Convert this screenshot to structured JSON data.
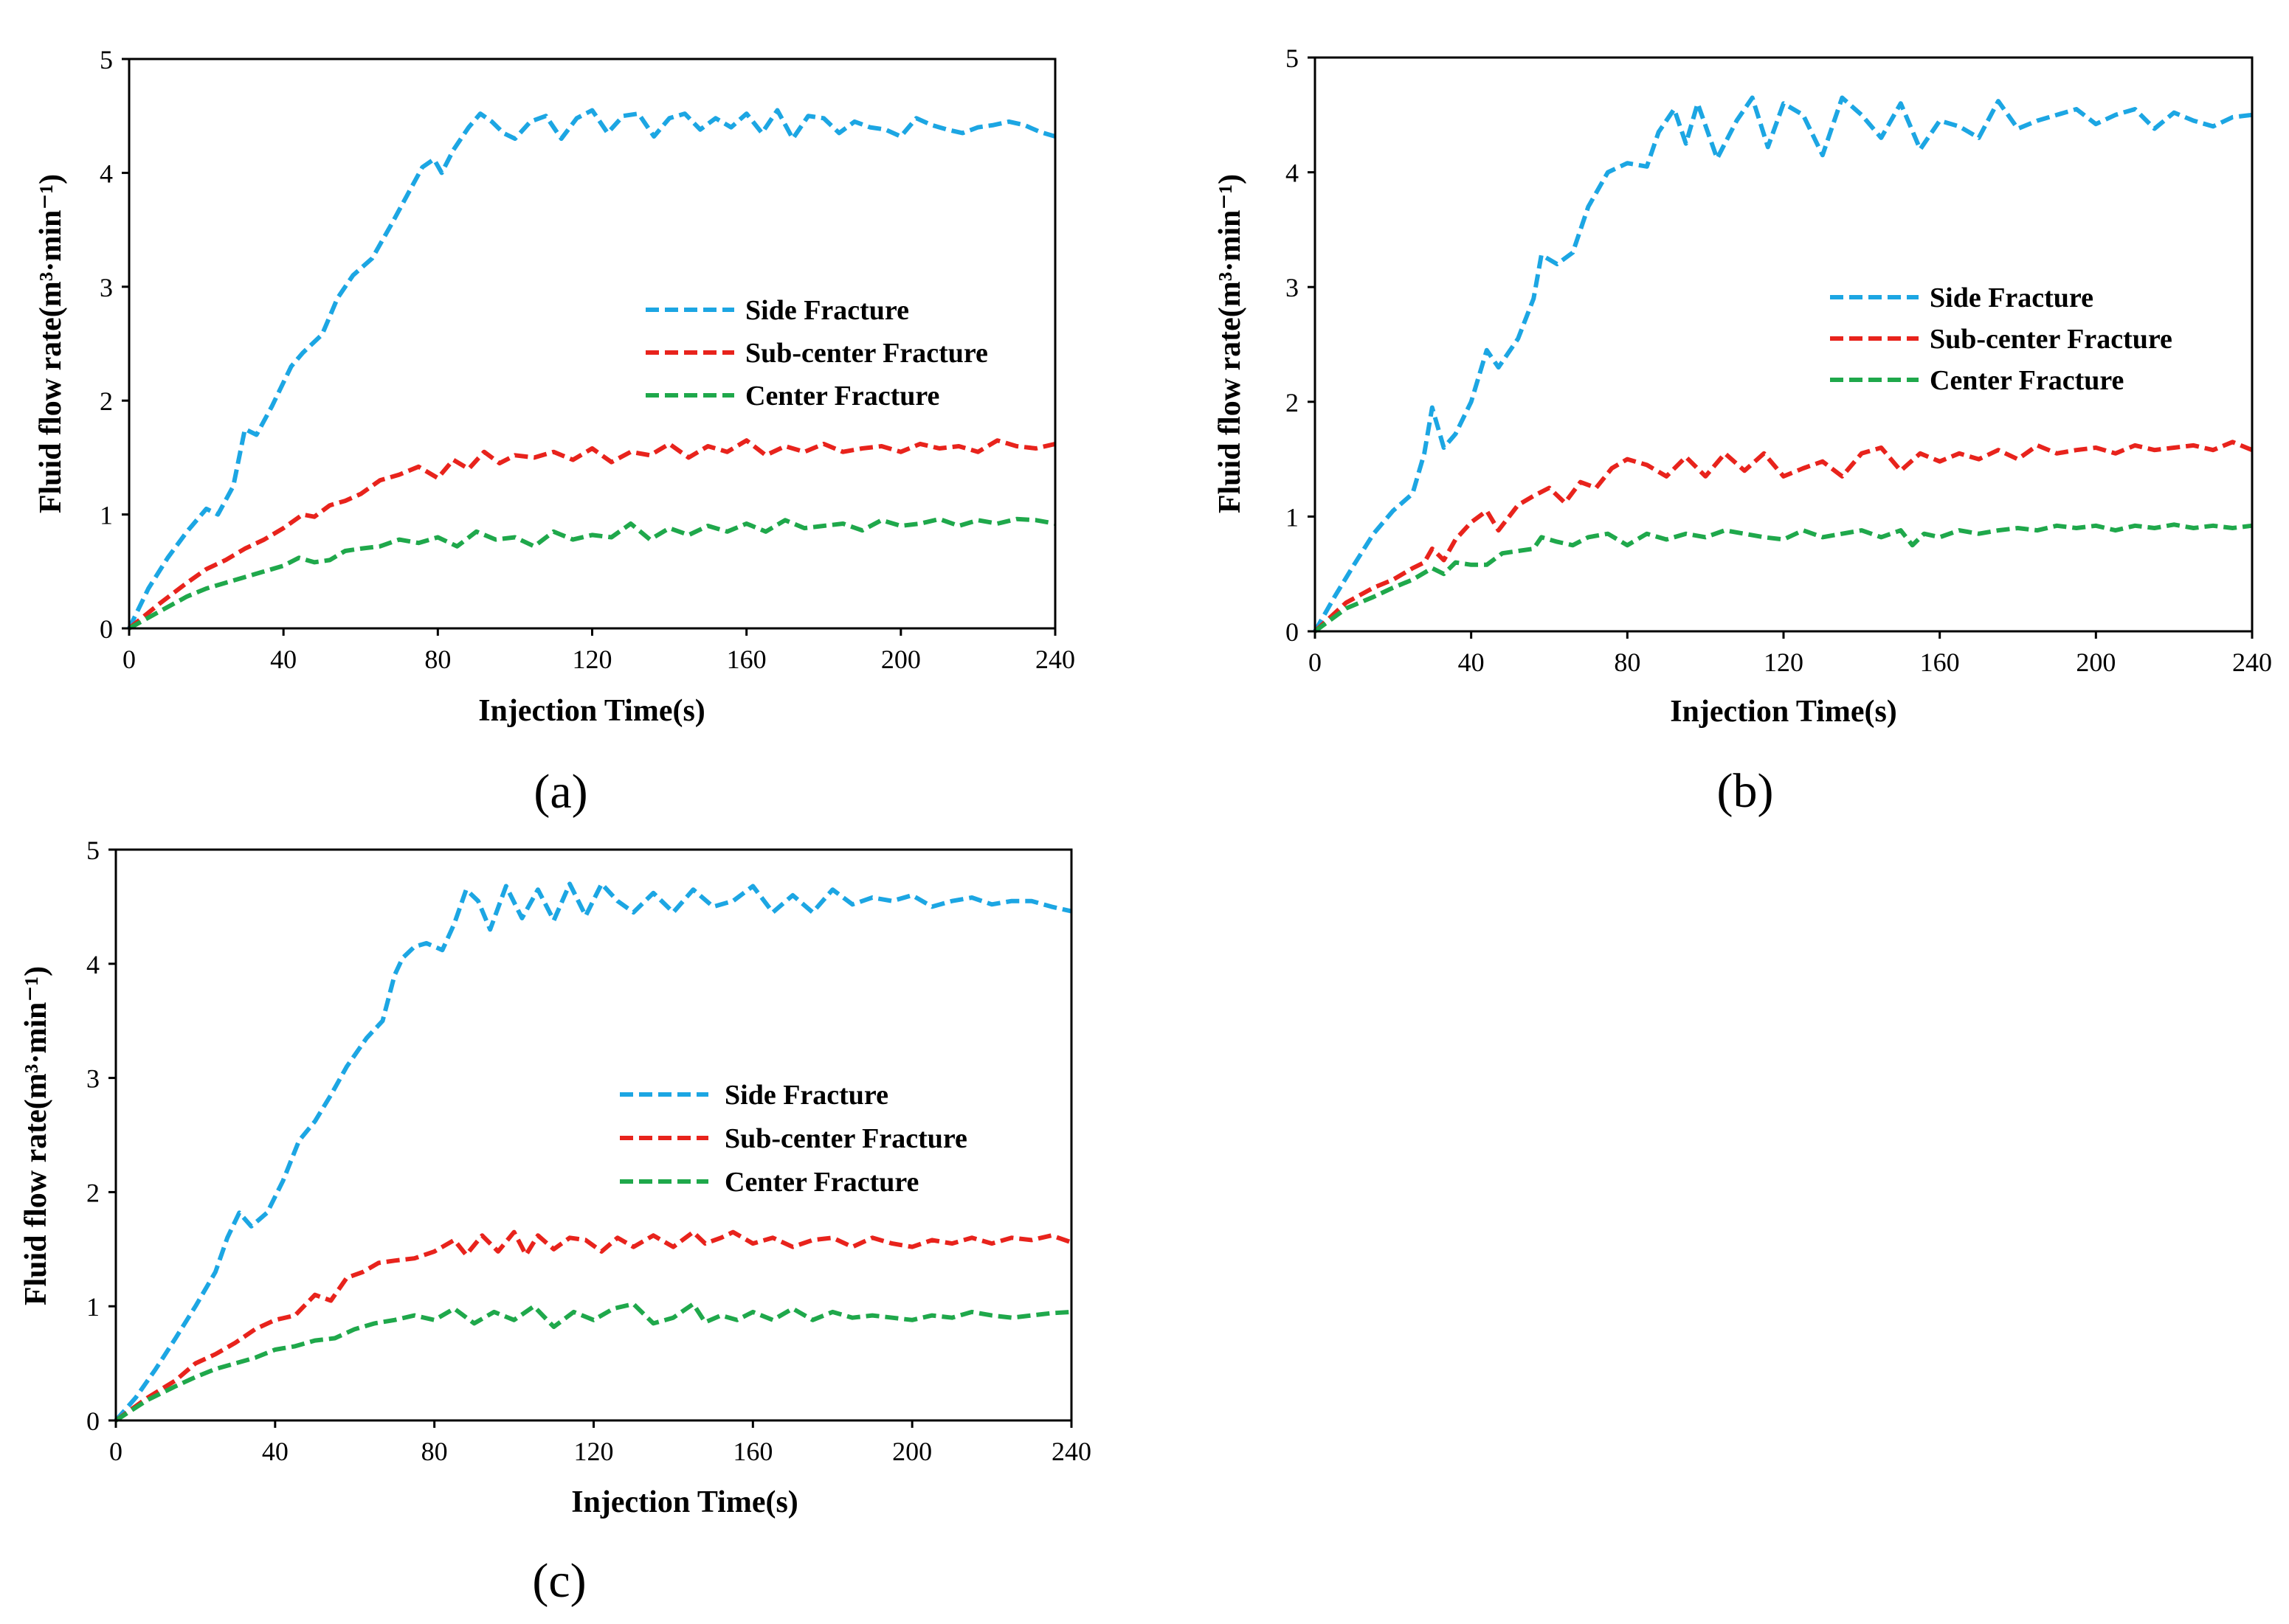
{
  "figure": {
    "y_tick_values": [
      0,
      1,
      2,
      3,
      4,
      5
    ],
    "x_tick_values": [
      0,
      40,
      80,
      120,
      160,
      200,
      240
    ]
  },
  "chart_data": [
    {
      "type": "line",
      "panel_label": "(a)",
      "xlabel": "Injection Time(s)",
      "ylabel": "Fluid flow rate(m³·min⁻¹)",
      "xlim": [
        0,
        240
      ],
      "ylim": [
        0,
        5
      ],
      "x_ticks": [
        "0",
        "40",
        "80",
        "120",
        "160",
        "200",
        "240"
      ],
      "y_ticks": [
        "0",
        "1",
        "2",
        "3",
        "4",
        "5"
      ],
      "grid": false,
      "legend_position": "center-right",
      "series": [
        {
          "name": "Side Fracture",
          "color": "#1CA6E3",
          "style": "dashed",
          "x": [
            0,
            5,
            10,
            15,
            20,
            23,
            27,
            30,
            33,
            37,
            42,
            45,
            50,
            54,
            58,
            63,
            68,
            72,
            76,
            79,
            81,
            84,
            88,
            91,
            94,
            97,
            100,
            104,
            108,
            112,
            116,
            120,
            124,
            128,
            132,
            136,
            140,
            144,
            148,
            152,
            156,
            160,
            164,
            168,
            172,
            176,
            180,
            184,
            188,
            192,
            196,
            200,
            204,
            208,
            212,
            216,
            220,
            224,
            228,
            232,
            236,
            240
          ],
          "y": [
            0,
            0.35,
            0.62,
            0.85,
            1.05,
            1.0,
            1.25,
            1.75,
            1.7,
            1.95,
            2.3,
            2.42,
            2.58,
            2.9,
            3.1,
            3.25,
            3.55,
            3.8,
            4.05,
            4.12,
            4.0,
            4.2,
            4.4,
            4.52,
            4.45,
            4.35,
            4.3,
            4.45,
            4.5,
            4.3,
            4.48,
            4.55,
            4.35,
            4.5,
            4.52,
            4.32,
            4.48,
            4.52,
            4.38,
            4.48,
            4.4,
            4.52,
            4.35,
            4.55,
            4.3,
            4.5,
            4.48,
            4.35,
            4.45,
            4.4,
            4.38,
            4.32,
            4.48,
            4.42,
            4.38,
            4.35,
            4.4,
            4.42,
            4.45,
            4.42,
            4.36,
            4.32
          ]
        },
        {
          "name": "Sub-center Fracture",
          "color": "#E8231C",
          "style": "dashed",
          "x": [
            0,
            8,
            15,
            20,
            25,
            30,
            35,
            40,
            45,
            48,
            52,
            56,
            60,
            65,
            70,
            75,
            80,
            84,
            88,
            92,
            96,
            100,
            105,
            110,
            115,
            120,
            125,
            130,
            135,
            140,
            145,
            150,
            155,
            160,
            165,
            170,
            175,
            180,
            185,
            190,
            195,
            200,
            205,
            210,
            215,
            220,
            225,
            230,
            235,
            240
          ],
          "y": [
            0,
            0.22,
            0.4,
            0.52,
            0.6,
            0.7,
            0.78,
            0.88,
            1.0,
            0.98,
            1.08,
            1.12,
            1.18,
            1.3,
            1.35,
            1.42,
            1.32,
            1.48,
            1.4,
            1.55,
            1.45,
            1.52,
            1.5,
            1.55,
            1.48,
            1.58,
            1.46,
            1.55,
            1.52,
            1.62,
            1.5,
            1.6,
            1.55,
            1.65,
            1.52,
            1.6,
            1.55,
            1.62,
            1.55,
            1.58,
            1.6,
            1.55,
            1.62,
            1.58,
            1.6,
            1.55,
            1.65,
            1.6,
            1.58,
            1.62
          ]
        },
        {
          "name": "Center Fracture",
          "color": "#1FA84B",
          "style": "dashed",
          "x": [
            0,
            8,
            15,
            20,
            25,
            30,
            35,
            40,
            44,
            48,
            52,
            56,
            60,
            65,
            70,
            75,
            80,
            85,
            90,
            95,
            100,
            105,
            110,
            115,
            120,
            125,
            130,
            135,
            140,
            145,
            150,
            155,
            160,
            165,
            170,
            175,
            180,
            185,
            190,
            195,
            200,
            205,
            210,
            215,
            220,
            225,
            230,
            235,
            240
          ],
          "y": [
            0,
            0.15,
            0.28,
            0.35,
            0.4,
            0.45,
            0.5,
            0.55,
            0.62,
            0.58,
            0.6,
            0.68,
            0.7,
            0.72,
            0.78,
            0.75,
            0.8,
            0.72,
            0.85,
            0.78,
            0.8,
            0.72,
            0.85,
            0.78,
            0.82,
            0.8,
            0.92,
            0.78,
            0.88,
            0.82,
            0.9,
            0.85,
            0.92,
            0.85,
            0.95,
            0.88,
            0.9,
            0.92,
            0.86,
            0.95,
            0.9,
            0.92,
            0.96,
            0.9,
            0.95,
            0.92,
            0.96,
            0.95,
            0.92
          ]
        }
      ]
    },
    {
      "type": "line",
      "panel_label": "(b)",
      "xlabel": "Injection Time(s)",
      "ylabel": "Fluid flow rate(m³·min⁻¹)",
      "xlim": [
        0,
        240
      ],
      "ylim": [
        0,
        5
      ],
      "x_ticks": [
        "0",
        "40",
        "80",
        "120",
        "160",
        "200",
        "240"
      ],
      "y_ticks": [
        "0",
        "1",
        "2",
        "3",
        "4",
        "5"
      ],
      "grid": false,
      "legend_position": "center-right",
      "series": [
        {
          "name": "Side Fracture",
          "color": "#1CA6E3",
          "style": "dashed",
          "x": [
            0,
            5,
            10,
            15,
            20,
            25,
            28,
            30,
            33,
            36,
            40,
            44,
            47,
            52,
            56,
            58,
            62,
            66,
            70,
            75,
            80,
            85,
            88,
            92,
            95,
            98,
            103,
            108,
            112,
            116,
            120,
            125,
            130,
            135,
            140,
            145,
            150,
            155,
            160,
            165,
            170,
            175,
            180,
            185,
            190,
            195,
            200,
            205,
            210,
            215,
            220,
            225,
            230,
            235,
            240
          ],
          "y": [
            0,
            0.3,
            0.58,
            0.85,
            1.05,
            1.2,
            1.55,
            1.95,
            1.6,
            1.72,
            2.0,
            2.45,
            2.3,
            2.55,
            2.9,
            3.28,
            3.2,
            3.3,
            3.7,
            4.0,
            4.08,
            4.05,
            4.35,
            4.55,
            4.25,
            4.6,
            4.12,
            4.45,
            4.65,
            4.22,
            4.6,
            4.5,
            4.15,
            4.65,
            4.5,
            4.3,
            4.6,
            4.2,
            4.45,
            4.4,
            4.3,
            4.62,
            4.38,
            4.45,
            4.5,
            4.55,
            4.42,
            4.5,
            4.55,
            4.38,
            4.52,
            4.45,
            4.4,
            4.48,
            4.5
          ]
        },
        {
          "name": "Sub-center Fracture",
          "color": "#E8231C",
          "style": "dashed",
          "x": [
            0,
            8,
            15,
            20,
            25,
            28,
            30,
            33,
            36,
            40,
            44,
            47,
            52,
            56,
            60,
            64,
            68,
            72,
            76,
            80,
            85,
            90,
            95,
            100,
            105,
            110,
            115,
            120,
            125,
            130,
            135,
            140,
            145,
            150,
            155,
            160,
            165,
            170,
            175,
            180,
            185,
            190,
            195,
            200,
            205,
            210,
            215,
            220,
            225,
            230,
            235,
            240
          ],
          "y": [
            0,
            0.25,
            0.38,
            0.45,
            0.55,
            0.6,
            0.72,
            0.62,
            0.8,
            0.95,
            1.05,
            0.88,
            1.1,
            1.18,
            1.25,
            1.12,
            1.3,
            1.25,
            1.42,
            1.5,
            1.45,
            1.35,
            1.52,
            1.35,
            1.55,
            1.4,
            1.55,
            1.35,
            1.42,
            1.48,
            1.35,
            1.55,
            1.6,
            1.4,
            1.55,
            1.48,
            1.55,
            1.5,
            1.58,
            1.5,
            1.62,
            1.55,
            1.58,
            1.6,
            1.55,
            1.62,
            1.58,
            1.6,
            1.62,
            1.58,
            1.65,
            1.58
          ]
        },
        {
          "name": "Center Fracture",
          "color": "#1FA84B",
          "style": "dashed",
          "x": [
            0,
            8,
            15,
            20,
            25,
            30,
            33,
            36,
            40,
            44,
            48,
            52,
            56,
            58,
            62,
            66,
            70,
            75,
            80,
            85,
            90,
            95,
            100,
            105,
            110,
            115,
            120,
            125,
            130,
            135,
            140,
            145,
            150,
            153,
            156,
            160,
            165,
            170,
            175,
            180,
            185,
            190,
            195,
            200,
            205,
            210,
            215,
            220,
            225,
            230,
            235,
            240
          ],
          "y": [
            0,
            0.2,
            0.3,
            0.38,
            0.45,
            0.55,
            0.5,
            0.6,
            0.58,
            0.58,
            0.68,
            0.7,
            0.72,
            0.82,
            0.78,
            0.75,
            0.82,
            0.85,
            0.75,
            0.85,
            0.8,
            0.85,
            0.82,
            0.88,
            0.85,
            0.82,
            0.8,
            0.88,
            0.82,
            0.85,
            0.88,
            0.82,
            0.88,
            0.75,
            0.85,
            0.82,
            0.88,
            0.85,
            0.88,
            0.9,
            0.88,
            0.92,
            0.9,
            0.92,
            0.88,
            0.92,
            0.9,
            0.93,
            0.9,
            0.92,
            0.9,
            0.92
          ]
        }
      ]
    },
    {
      "type": "line",
      "panel_label": "(c)",
      "xlabel": "Injection Time(s)",
      "ylabel": "Fluid flow rate(m³·min⁻¹)",
      "xlim": [
        0,
        240
      ],
      "ylim": [
        0,
        5
      ],
      "x_ticks": [
        "0",
        "40",
        "80",
        "120",
        "160",
        "200",
        "240"
      ],
      "y_ticks": [
        "0",
        "1",
        "2",
        "3",
        "4",
        "5"
      ],
      "grid": false,
      "legend_position": "center-right",
      "series": [
        {
          "name": "Side Fracture",
          "color": "#1CA6E3",
          "style": "dashed",
          "x": [
            0,
            5,
            10,
            15,
            20,
            25,
            28,
            31,
            34,
            38,
            42,
            46,
            50,
            54,
            58,
            63,
            67,
            70,
            72,
            75,
            78,
            82,
            85,
            88,
            91,
            94,
            98,
            102,
            106,
            110,
            114,
            118,
            122,
            126,
            130,
            135,
            140,
            145,
            150,
            155,
            160,
            165,
            170,
            175,
            180,
            185,
            190,
            195,
            200,
            205,
            210,
            215,
            220,
            225,
            230,
            235,
            240
          ],
          "y": [
            0,
            0.2,
            0.45,
            0.72,
            1.0,
            1.3,
            1.6,
            1.82,
            1.7,
            1.82,
            2.1,
            2.45,
            2.62,
            2.85,
            3.1,
            3.35,
            3.5,
            3.9,
            4.05,
            4.15,
            4.18,
            4.12,
            4.35,
            4.65,
            4.55,
            4.3,
            4.68,
            4.4,
            4.65,
            4.38,
            4.7,
            4.42,
            4.7,
            4.55,
            4.45,
            4.62,
            4.45,
            4.65,
            4.5,
            4.55,
            4.68,
            4.45,
            4.6,
            4.45,
            4.65,
            4.52,
            4.58,
            4.55,
            4.6,
            4.5,
            4.55,
            4.58,
            4.52,
            4.55,
            4.55,
            4.5,
            4.46
          ]
        },
        {
          "name": "Sub-center Fracture",
          "color": "#E8231C",
          "style": "dashed",
          "x": [
            0,
            8,
            15,
            20,
            25,
            30,
            35,
            40,
            45,
            50,
            54,
            58,
            62,
            66,
            70,
            75,
            80,
            85,
            88,
            92,
            96,
            100,
            103,
            106,
            110,
            114,
            118,
            122,
            126,
            130,
            135,
            140,
            145,
            148,
            152,
            155,
            160,
            165,
            170,
            175,
            180,
            185,
            190,
            195,
            200,
            205,
            210,
            215,
            220,
            225,
            230,
            235,
            240
          ],
          "y": [
            0,
            0.2,
            0.35,
            0.5,
            0.58,
            0.68,
            0.8,
            0.88,
            0.92,
            1.1,
            1.05,
            1.25,
            1.3,
            1.38,
            1.4,
            1.42,
            1.48,
            1.58,
            1.45,
            1.62,
            1.48,
            1.65,
            1.45,
            1.62,
            1.5,
            1.6,
            1.58,
            1.48,
            1.6,
            1.52,
            1.62,
            1.52,
            1.65,
            1.55,
            1.6,
            1.65,
            1.55,
            1.6,
            1.52,
            1.58,
            1.6,
            1.52,
            1.6,
            1.55,
            1.52,
            1.58,
            1.55,
            1.6,
            1.55,
            1.6,
            1.58,
            1.62,
            1.56
          ]
        },
        {
          "name": "Center Fracture",
          "color": "#1FA84B",
          "style": "dashed",
          "x": [
            0,
            8,
            15,
            20,
            25,
            30,
            35,
            40,
            45,
            50,
            55,
            60,
            65,
            70,
            75,
            80,
            85,
            90,
            95,
            100,
            105,
            110,
            115,
            120,
            125,
            130,
            135,
            140,
            145,
            148,
            152,
            156,
            160,
            165,
            170,
            175,
            180,
            185,
            190,
            195,
            200,
            205,
            210,
            215,
            220,
            225,
            230,
            235,
            240
          ],
          "y": [
            0,
            0.18,
            0.3,
            0.38,
            0.45,
            0.5,
            0.55,
            0.62,
            0.65,
            0.7,
            0.72,
            0.8,
            0.85,
            0.88,
            0.92,
            0.88,
            0.98,
            0.85,
            0.95,
            0.88,
            1.0,
            0.82,
            0.95,
            0.88,
            0.98,
            1.02,
            0.85,
            0.9,
            1.02,
            0.86,
            0.92,
            0.88,
            0.95,
            0.88,
            0.98,
            0.88,
            0.95,
            0.9,
            0.92,
            0.9,
            0.88,
            0.92,
            0.9,
            0.95,
            0.92,
            0.9,
            0.92,
            0.94,
            0.95
          ]
        }
      ]
    }
  ]
}
